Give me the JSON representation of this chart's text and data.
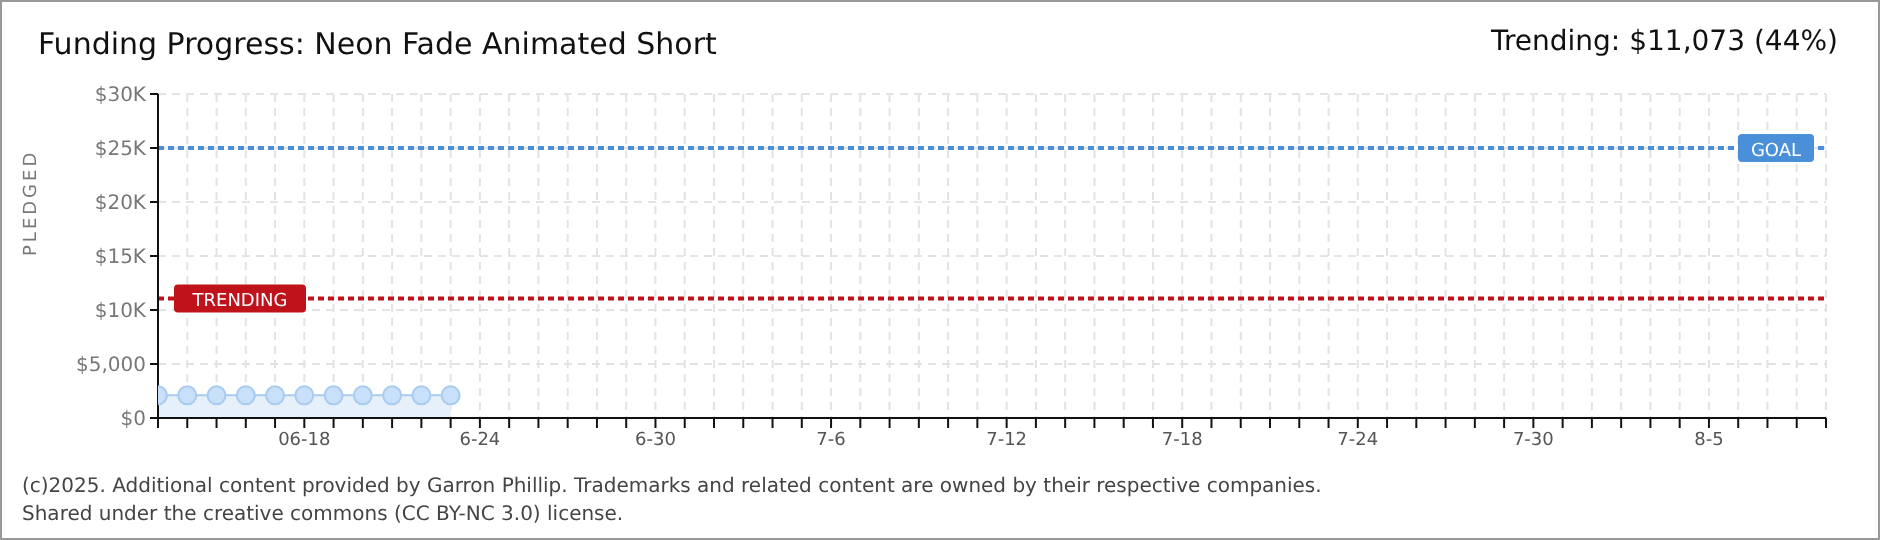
{
  "chart_data": {
    "type": "area",
    "title": "Funding Progress: Neon Fade Animated Short",
    "ylabel": "PLEDGED",
    "annotations": [
      "Trending: $11,073 (44%)",
      "(c)2025. Additional content provided by Garron Phillip. Trademarks and related content are owned by their respective companies.",
      "Shared under the creative commons (CC BY-NC 3.0) license."
    ],
    "x": [
      "--06-13",
      "--06-14",
      "--06-15",
      "--06-16",
      "--06-17",
      "--06-18",
      "--06-19",
      "--06-20",
      "--06-21",
      "--06-22",
      "--06-23"
    ],
    "series": [
      {
        "color": "#a9cbf0",
        "values": [
          2100,
          2100,
          2100,
          2100,
          2100,
          2100,
          2100,
          2100,
          2100,
          2100,
          2100
        ]
      }
    ],
    "xlim": [
      "--06-13",
      "--08-09"
    ],
    "xticks": [
      {
        "value": "--06-13",
        "label": null
      },
      {
        "value": "--06-14",
        "label": null
      },
      {
        "value": "--06-15",
        "label": null
      },
      {
        "value": "--06-16",
        "label": null
      },
      {
        "value": "--06-17",
        "label": null
      },
      {
        "value": "--06-18",
        "label": "06-18"
      },
      {
        "value": "--06-19",
        "label": null
      },
      {
        "value": "--06-20",
        "label": null
      },
      {
        "value": "--06-21",
        "label": null
      },
      {
        "value": "--06-22",
        "label": null
      },
      {
        "value": "--06-23",
        "label": null
      },
      {
        "value": "--06-24",
        "label": "6-24"
      },
      {
        "value": "--06-25",
        "label": null
      },
      {
        "value": "--06-26",
        "label": null
      },
      {
        "value": "--06-27",
        "label": null
      },
      {
        "value": "--06-28",
        "label": null
      },
      {
        "value": "--06-29",
        "label": null
      },
      {
        "value": "--06-30",
        "label": "6-30"
      },
      {
        "value": "--07-01",
        "label": null
      },
      {
        "value": "--07-02",
        "label": null
      },
      {
        "value": "--07-03",
        "label": null
      },
      {
        "value": "--07-04",
        "label": null
      },
      {
        "value": "--07-05",
        "label": null
      },
      {
        "value": "--07-06",
        "label": "7-6"
      },
      {
        "value": "--07-07",
        "label": null
      },
      {
        "value": "--07-08",
        "label": null
      },
      {
        "value": "--07-09",
        "label": null
      },
      {
        "value": "--07-10",
        "label": null
      },
      {
        "value": "--07-11",
        "label": null
      },
      {
        "value": "--07-12",
        "label": "7-12"
      },
      {
        "value": "--07-13",
        "label": null
      },
      {
        "value": "--07-14",
        "label": null
      },
      {
        "value": "--07-15",
        "label": null
      },
      {
        "value": "--07-16",
        "label": null
      },
      {
        "value": "--07-17",
        "label": null
      },
      {
        "value": "--07-18",
        "label": "7-18"
      },
      {
        "value": "--07-19",
        "label": null
      },
      {
        "value": "--07-20",
        "label": null
      },
      {
        "value": "--07-21",
        "label": null
      },
      {
        "value": "--07-22",
        "label": null
      },
      {
        "value": "--07-23",
        "label": null
      },
      {
        "value": "--07-24",
        "label": "7-24"
      },
      {
        "value": "--07-25",
        "label": null
      },
      {
        "value": "--07-26",
        "label": null
      },
      {
        "value": "--07-27",
        "label": null
      },
      {
        "value": "--07-28",
        "label": null
      },
      {
        "value": "--07-29",
        "label": null
      },
      {
        "value": "--07-30",
        "label": "7-30"
      },
      {
        "value": "--07-31",
        "label": null
      },
      {
        "value": "--08-01",
        "label": null
      },
      {
        "value": "--08-02",
        "label": null
      },
      {
        "value": "--08-03",
        "label": null
      },
      {
        "value": "--08-04",
        "label": null
      },
      {
        "value": "--08-05",
        "label": "8-5"
      },
      {
        "value": "--08-06",
        "label": null
      },
      {
        "value": "--08-07",
        "label": null
      },
      {
        "value": "--08-08",
        "label": null
      },
      {
        "value": "--08-09",
        "label": null
      }
    ],
    "ylim": [
      0,
      30000
    ],
    "yticks": [
      {
        "value": 0,
        "label": "$0"
      },
      {
        "value": 5000,
        "label": "$5,000"
      },
      {
        "value": 10000,
        "label": "$10K"
      },
      {
        "value": 15000,
        "label": "$15K"
      },
      {
        "value": 20000,
        "label": "$20K"
      },
      {
        "value": 25000,
        "label": "$25K"
      },
      {
        "value": 30000,
        "label": "$30K"
      }
    ],
    "ref_lines": [
      {
        "axis": "y",
        "value": 25000,
        "label": "GOAL",
        "color": "#4a90d9",
        "line_style": "dotted"
      },
      {
        "axis": "y",
        "value": 11073,
        "label": "TRENDING",
        "color": "#c0121b",
        "line_style": "dotted"
      }
    ],
    "grid": true,
    "marker": "circle"
  }
}
